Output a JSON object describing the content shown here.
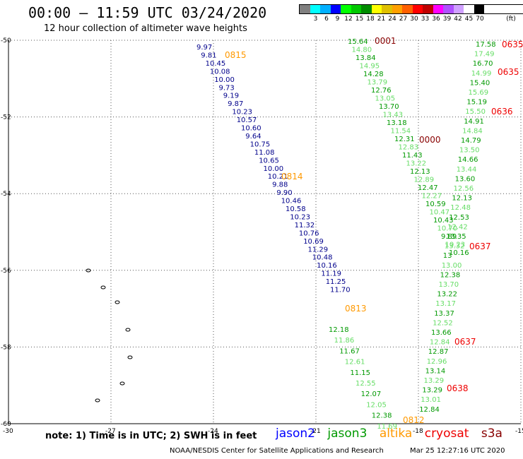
{
  "header": {
    "title": "00:00 – 11:59 UTC 03/24/2020",
    "subtitle": "12 hour collection of altimeter wave heights"
  },
  "legend": {
    "unit": "(ft)",
    "bins": [
      {
        "color": "#808080",
        "tick": ""
      },
      {
        "color": "#00ffff",
        "tick": "3"
      },
      {
        "color": "#00b0ff",
        "tick": "6"
      },
      {
        "color": "#0000ff",
        "tick": "9"
      },
      {
        "color": "#00ff00",
        "tick": "12"
      },
      {
        "color": "#00c800",
        "tick": "15"
      },
      {
        "color": "#008c00",
        "tick": "18"
      },
      {
        "color": "#ffff00",
        "tick": "21"
      },
      {
        "color": "#e0c000",
        "tick": "24"
      },
      {
        "color": "#ffa000",
        "tick": "27"
      },
      {
        "color": "#ff6000",
        "tick": "30"
      },
      {
        "color": "#ff0000",
        "tick": "33"
      },
      {
        "color": "#c00000",
        "tick": "36"
      },
      {
        "color": "#ff00ff",
        "tick": "39"
      },
      {
        "color": "#b050ff",
        "tick": "42"
      },
      {
        "color": "#d0a0ff",
        "tick": "45"
      },
      {
        "color": "#ffffff",
        "tick": "70"
      },
      {
        "color": "#000000",
        "tick": ""
      }
    ]
  },
  "axes": {
    "lat_labels": [
      "-50",
      "-52",
      "-54",
      "-56",
      "-58",
      "-60"
    ],
    "lon_labels": [
      "-30",
      "-27",
      "-24",
      "-21",
      "-18",
      "-15"
    ],
    "lat_range": [
      -60,
      -50
    ],
    "lon_range": [
      -30,
      -15
    ]
  },
  "colors": {
    "jason2": "#00008b",
    "jason3": "#009900",
    "jason3_light": "#66dd66",
    "altika": "#ff9900",
    "cryosat": "#ee0000",
    "s3a": "#880000"
  },
  "tracks": {
    "jason2": {
      "time": "0815",
      "values": [
        "9.97",
        "9.81",
        "10.45",
        "10.08",
        "10.00",
        "9.73",
        "9.19",
        "9.87",
        "10.23",
        "10.57",
        "10.60",
        "9.64",
        "10.75",
        "11.08",
        "10.65",
        "10.00",
        "10.21",
        "9.88",
        "9.90",
        "10.46",
        "10.58",
        "10.23",
        "11.32",
        "10.76",
        "10.69",
        "11.29",
        "10.48",
        "10.16",
        "11.19",
        "11.25",
        "11.70"
      ]
    },
    "jason3_a": {
      "values": [
        "12.18",
        "11.86",
        "11.67",
        "12.61",
        "11.15",
        "12.55",
        "12.07",
        "12.05",
        "12.38",
        "11.69"
      ]
    },
    "jason3_b": {
      "values": [
        "15.64",
        "14.80",
        "13.84",
        "14.95",
        "14.28",
        "13.79",
        "12.76",
        "13.05",
        "13.70",
        "13.43",
        "13.18",
        "11.54",
        "12.31",
        "12.83",
        "11.43",
        "13.22",
        "12.13",
        "12.89",
        "12.47",
        "12.27",
        "10.59",
        "10.47",
        "10.43",
        "10.70",
        "9.89",
        "10.23",
        "10.16"
      ]
    },
    "jason3_c": {
      "values": [
        "17.58",
        "17.49",
        "16.70",
        "14.99",
        "15.40",
        "15.69",
        "15.19",
        "15.50",
        "14.91",
        "14.84",
        "14.79",
        "13.50",
        "14.66",
        "13.44",
        "13.60",
        "12.56",
        "12.13",
        "12.48",
        "12.53",
        "12.42",
        "13.35",
        "13.32",
        "13",
        "13.00",
        "12.38",
        "13.70",
        "13.22",
        "13.17",
        "13.37",
        "12.52",
        "13.66",
        "12.84",
        "12.87",
        "12.96",
        "13.14",
        "13.29",
        "13.29",
        "13.01",
        "12.84"
      ]
    }
  },
  "time_labels": {
    "altika": [
      "0815",
      "0814",
      "0813",
      "0812"
    ],
    "s3a": [
      "0001",
      "0000"
    ],
    "cryosat": [
      "0635",
      "0635",
      "0636",
      "0637",
      "0637",
      "0638"
    ]
  },
  "footer": {
    "note": "note:  1) Time is in UTC;  2) SWH is in feet",
    "sats": [
      "jason2",
      "jason3",
      "altika",
      "cryosat",
      "s3a"
    ],
    "credit": "NOAA/NESDIS Center for Satellite Applications and Research",
    "stamp": "Mar 25 12:27:16 UTC 2020"
  }
}
